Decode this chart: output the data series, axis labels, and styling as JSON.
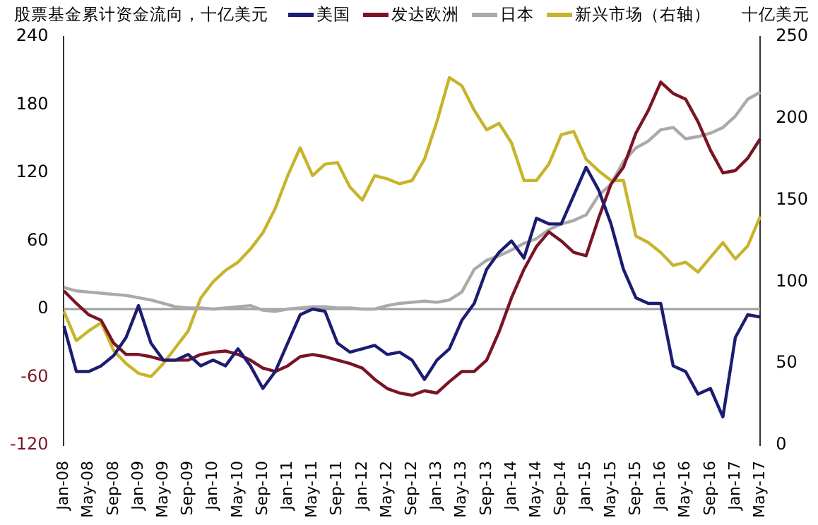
{
  "chart_data": {
    "type": "line",
    "title": "股票基金累计资金流向，十亿美元",
    "y2label": "十亿美元",
    "categories": [
      "Jan-08",
      null,
      "May-08",
      null,
      "Sep-08",
      null,
      "Jan-09",
      null,
      "May-09",
      null,
      "Sep-09",
      null,
      "Jan-10",
      null,
      "May-10",
      null,
      "Sep-10",
      null,
      "Jan-11",
      null,
      "May-11",
      null,
      "Sep-11",
      null,
      "Jan-12",
      null,
      "May-12",
      null,
      "Sep-12",
      null,
      "Jan-13",
      null,
      "May-13",
      null,
      "Sep-13",
      null,
      "Jan-14",
      null,
      "May-14",
      null,
      "Sep-14",
      null,
      "Jan-15",
      null,
      "May-15",
      null,
      "Sep-15",
      null,
      "Jan-16",
      null,
      "May-16",
      null,
      "Sep-16",
      null,
      "Jan-17",
      null,
      "May-17"
    ],
    "series": [
      {
        "name": "美国",
        "color": "#1c1c72",
        "values": [
          -15,
          -55,
          -55,
          -50,
          -41,
          -25,
          3,
          -30,
          -45,
          -45,
          -40,
          -50,
          -45,
          -50,
          -35,
          -50,
          -70,
          -55,
          -30,
          -5,
          0,
          -2,
          -30,
          -38,
          -35,
          -32,
          -40,
          -38,
          -45,
          -62,
          -45,
          -35,
          -10,
          5,
          35,
          50,
          60,
          45,
          80,
          75,
          75,
          100,
          125,
          105,
          75,
          35,
          10,
          5,
          5,
          -50,
          -55,
          -75,
          -70,
          -95,
          -25,
          -5,
          -7
        ]
      },
      {
        "name": "发达欧洲",
        "color": "#7a1424",
        "values": [
          16,
          5,
          -5,
          -10,
          -30,
          -40,
          -40,
          -42,
          -45,
          -45,
          -45,
          -40,
          -38,
          -37,
          -40,
          -45,
          -52,
          -55,
          -50,
          -42,
          -40,
          -42,
          -45,
          -48,
          -52,
          -62,
          -70,
          -74,
          -76,
          -72,
          -74,
          -64,
          -55,
          -55,
          -45,
          -20,
          10,
          35,
          55,
          68,
          60,
          50,
          47,
          80,
          110,
          125,
          155,
          175,
          200,
          190,
          185,
          165,
          140,
          120,
          122,
          133,
          150
        ]
      },
      {
        "name": "日本",
        "color": "#aaaaaa",
        "values": [
          19,
          16,
          15,
          14,
          13,
          12,
          10,
          8,
          5,
          2,
          1,
          1,
          0,
          1,
          2,
          3,
          -1,
          -2,
          0,
          1,
          2,
          2,
          1,
          1,
          0,
          0,
          3,
          5,
          6,
          7,
          6,
          8,
          15,
          35,
          43,
          47,
          52,
          58,
          62,
          70,
          75,
          78,
          83,
          100,
          110,
          130,
          142,
          148,
          158,
          160,
          150,
          152,
          155,
          160,
          170,
          185,
          191
        ]
      },
      {
        "name": "新兴市场（右轴）",
        "color": "#c8b42c",
        "axis": "y2",
        "values": [
          82,
          64,
          70,
          75,
          58,
          50,
          44,
          42,
          50,
          60,
          70,
          90,
          100,
          107,
          112,
          120,
          130,
          145,
          165,
          182,
          165,
          172,
          173,
          158,
          150,
          165,
          163,
          160,
          162,
          175,
          198,
          225,
          220,
          205,
          193,
          197,
          185,
          162,
          162,
          172,
          190,
          192,
          175,
          168,
          162,
          162,
          128,
          124,
          118,
          110,
          112,
          106,
          115,
          124,
          114,
          122,
          140
        ]
      }
    ],
    "ylim": [
      -120,
      240
    ],
    "yticks": [
      -120,
      -60,
      0,
      60,
      120,
      180,
      240
    ],
    "y2lim": [
      0,
      250
    ],
    "y2ticks": [
      0,
      50,
      100,
      150,
      200,
      250
    ],
    "ref_lines": [
      {
        "axis": "y",
        "value": 0,
        "color": "#a0a0a0"
      }
    ],
    "legend": "top",
    "marker": "none",
    "grid": false
  }
}
